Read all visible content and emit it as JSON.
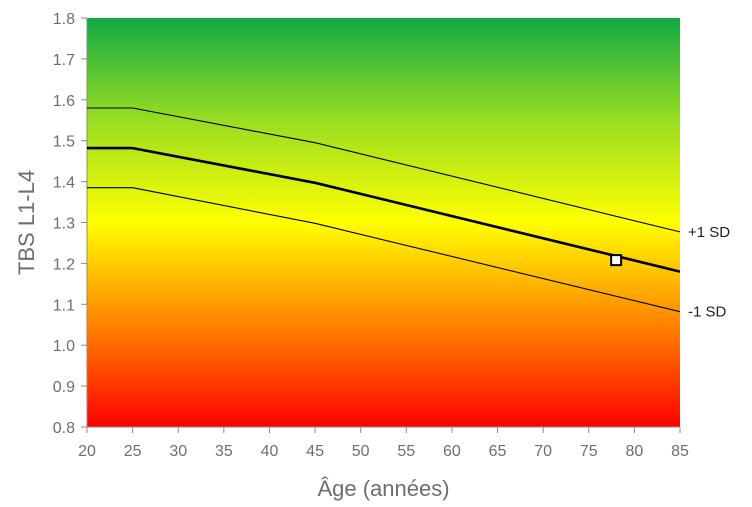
{
  "chart_data": {
    "type": "line",
    "title": "",
    "xlabel": "Âge (années)",
    "ylabel": "TBS L1-L4",
    "xlim": [
      20,
      85
    ],
    "ylim": [
      0.8,
      1.8
    ],
    "x_ticks": [
      "20",
      "25",
      "30",
      "35",
      "40",
      "45",
      "50",
      "55",
      "60",
      "65",
      "70",
      "75",
      "80",
      "85"
    ],
    "y_ticks": [
      "0.8",
      "0.9",
      "1.0",
      "1.1",
      "1.2",
      "1.3",
      "1.4",
      "1.5",
      "1.6",
      "1.7",
      "1.8"
    ],
    "background_gradient": [
      {
        "y": 0.8,
        "color": "#ff0000"
      },
      {
        "y": 1.0,
        "color": "#ff6a00"
      },
      {
        "y": 1.2,
        "color": "#ffcc00"
      },
      {
        "y": 1.3,
        "color": "#ffff00"
      },
      {
        "y": 1.55,
        "color": "#99dd22"
      },
      {
        "y": 1.8,
        "color": "#11aa44"
      }
    ],
    "series": [
      {
        "name": "+1 SD",
        "x": [
          20,
          25,
          45,
          85
        ],
        "y": [
          1.58,
          1.58,
          1.495,
          1.277
        ],
        "color": "#000000",
        "width": "thin"
      },
      {
        "x": [
          20,
          25,
          45,
          85
        ],
        "y": [
          1.482,
          1.482,
          1.397,
          1.18
        ],
        "color": "#000000",
        "width": "thick"
      },
      {
        "name": "-1 SD",
        "x": [
          20,
          25,
          45,
          85
        ],
        "y": [
          1.385,
          1.385,
          1.298,
          1.082
        ],
        "color": "#000000",
        "width": "thin"
      }
    ],
    "points": [
      {
        "x": 78,
        "y": 1.208,
        "marker": "square"
      }
    ],
    "grid": false
  }
}
